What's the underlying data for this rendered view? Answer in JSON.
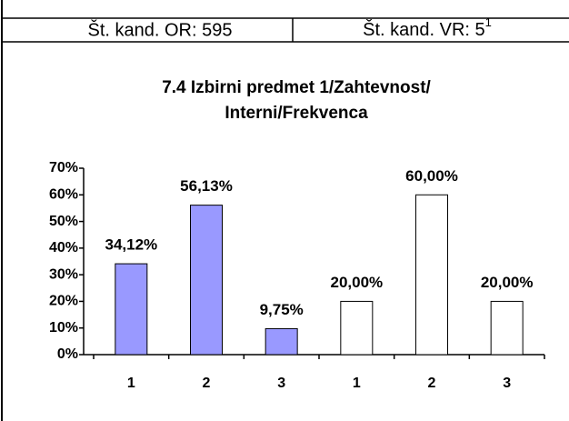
{
  "header": {
    "cells": [
      {
        "text": "Št. kand. OR: 595"
      },
      {
        "text": "Št. kand. VR: 5",
        "sup": "1"
      }
    ]
  },
  "chart_data": {
    "type": "bar",
    "title": [
      "7.4 Izbirni predmet 1/Zahtevnost/",
      "Interni/Frekvenca"
    ],
    "categories": [
      "1",
      "2",
      "3",
      "1",
      "2",
      "3"
    ],
    "values": [
      34.12,
      56.13,
      9.75,
      20,
      60,
      20
    ],
    "value_labels": [
      "34,12%",
      "56,13%",
      "9,75%",
      "20,00%",
      "60,00%",
      "20,00%"
    ],
    "colors": [
      "#9999ff",
      "#9999ff",
      "#9999ff",
      "#ffffff",
      "#ffffff",
      "#ffffff"
    ],
    "ylim": [
      0,
      70
    ],
    "yticks": [
      {
        "value": 0,
        "label": "0%"
      },
      {
        "value": 10,
        "label": "10%"
      },
      {
        "value": 20,
        "label": "20%"
      },
      {
        "value": 30,
        "label": "30%"
      },
      {
        "value": 40,
        "label": "40%"
      },
      {
        "value": 50,
        "label": "50%"
      },
      {
        "value": 60,
        "label": "60%"
      },
      {
        "value": 70,
        "label": "70%"
      }
    ],
    "grid": false
  }
}
